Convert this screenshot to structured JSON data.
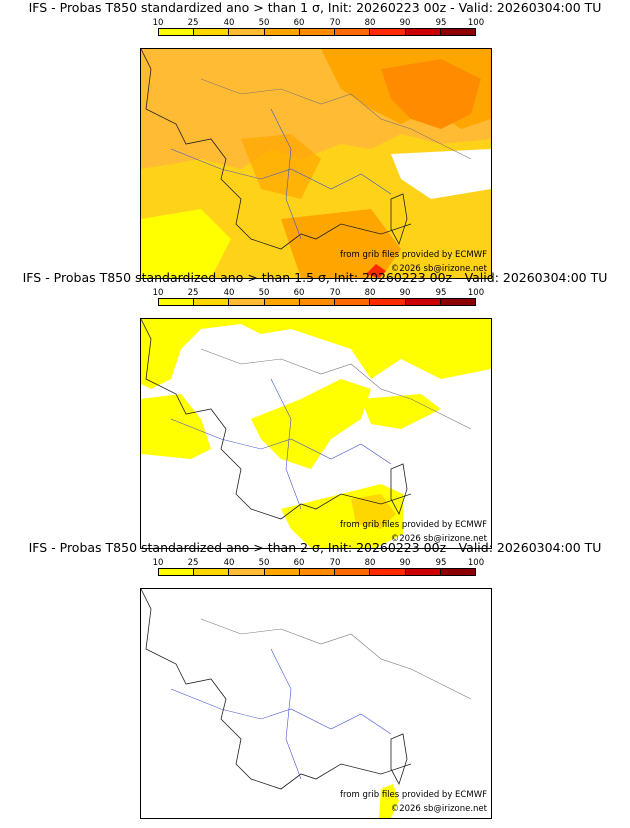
{
  "legend": {
    "ticks": [
      "10",
      "25",
      "40",
      "50",
      "60",
      "70",
      "80",
      "90",
      "95",
      "100"
    ],
    "colors": [
      "#ffff00",
      "#ffd700",
      "#ffbb33",
      "#ffa500",
      "#ff8c00",
      "#ff6a00",
      "#ff2a00",
      "#cc0000",
      "#8b0000",
      "#5a0000"
    ]
  },
  "panels": [
    {
      "title": "IFS - Probas T850  standardized ano > than 1 σ, Init: 20260223 00z - Valid: 20260304:00 TU",
      "source": "from grib files provided by ECMWF",
      "copyright": "©2026 sb@irizone.net"
    },
    {
      "title": "IFS - Probas T850  standardized ano > than 1.5 σ, Init: 20260223 00z - Valid: 20260304:00 TU",
      "source": "from grib files provided by ECMWF",
      "copyright": "©2026 sb@irizone.net"
    },
    {
      "title": "IFS - Probas T850  standardized ano > than 2 σ, Init: 20260223 00z - Valid: 20260304:00 TU",
      "source": "from grib files provided by ECMWF",
      "copyright": "©2026 sb@irizone.net"
    }
  ]
}
